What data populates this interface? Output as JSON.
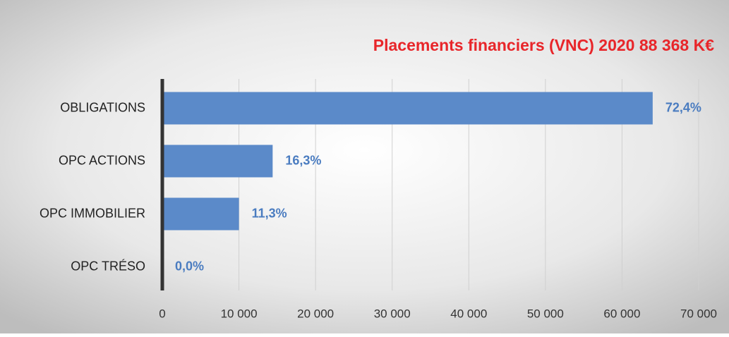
{
  "chart_data": {
    "type": "bar",
    "orientation": "horizontal",
    "title": "Placements financiers (VNC) 2020  88 368 K€",
    "categories": [
      "OBLIGATIONS",
      "OPC ACTIONS",
      "OPC IMMOBILIER",
      "OPC TRÉSO"
    ],
    "values": [
      64000,
      14400,
      10000,
      0
    ],
    "value_labels": [
      "72,4%",
      "16,3%",
      "11,3%",
      "0,0%"
    ],
    "color": "#5b8ac9",
    "xlim": [
      0,
      70000
    ],
    "xticks": [
      0,
      {
        "value": 10000,
        "label": "10 000"
      },
      {
        "value": 20000,
        "label": "20 000"
      },
      {
        "value": 30000,
        "label": "30 000"
      },
      {
        "value": 40000,
        "label": "40 000"
      },
      {
        "value": 50000,
        "label": "50 000"
      },
      {
        "value": 60000,
        "label": "60 000"
      },
      {
        "value": 70000,
        "label": "70 000"
      }
    ],
    "grid": true
  }
}
